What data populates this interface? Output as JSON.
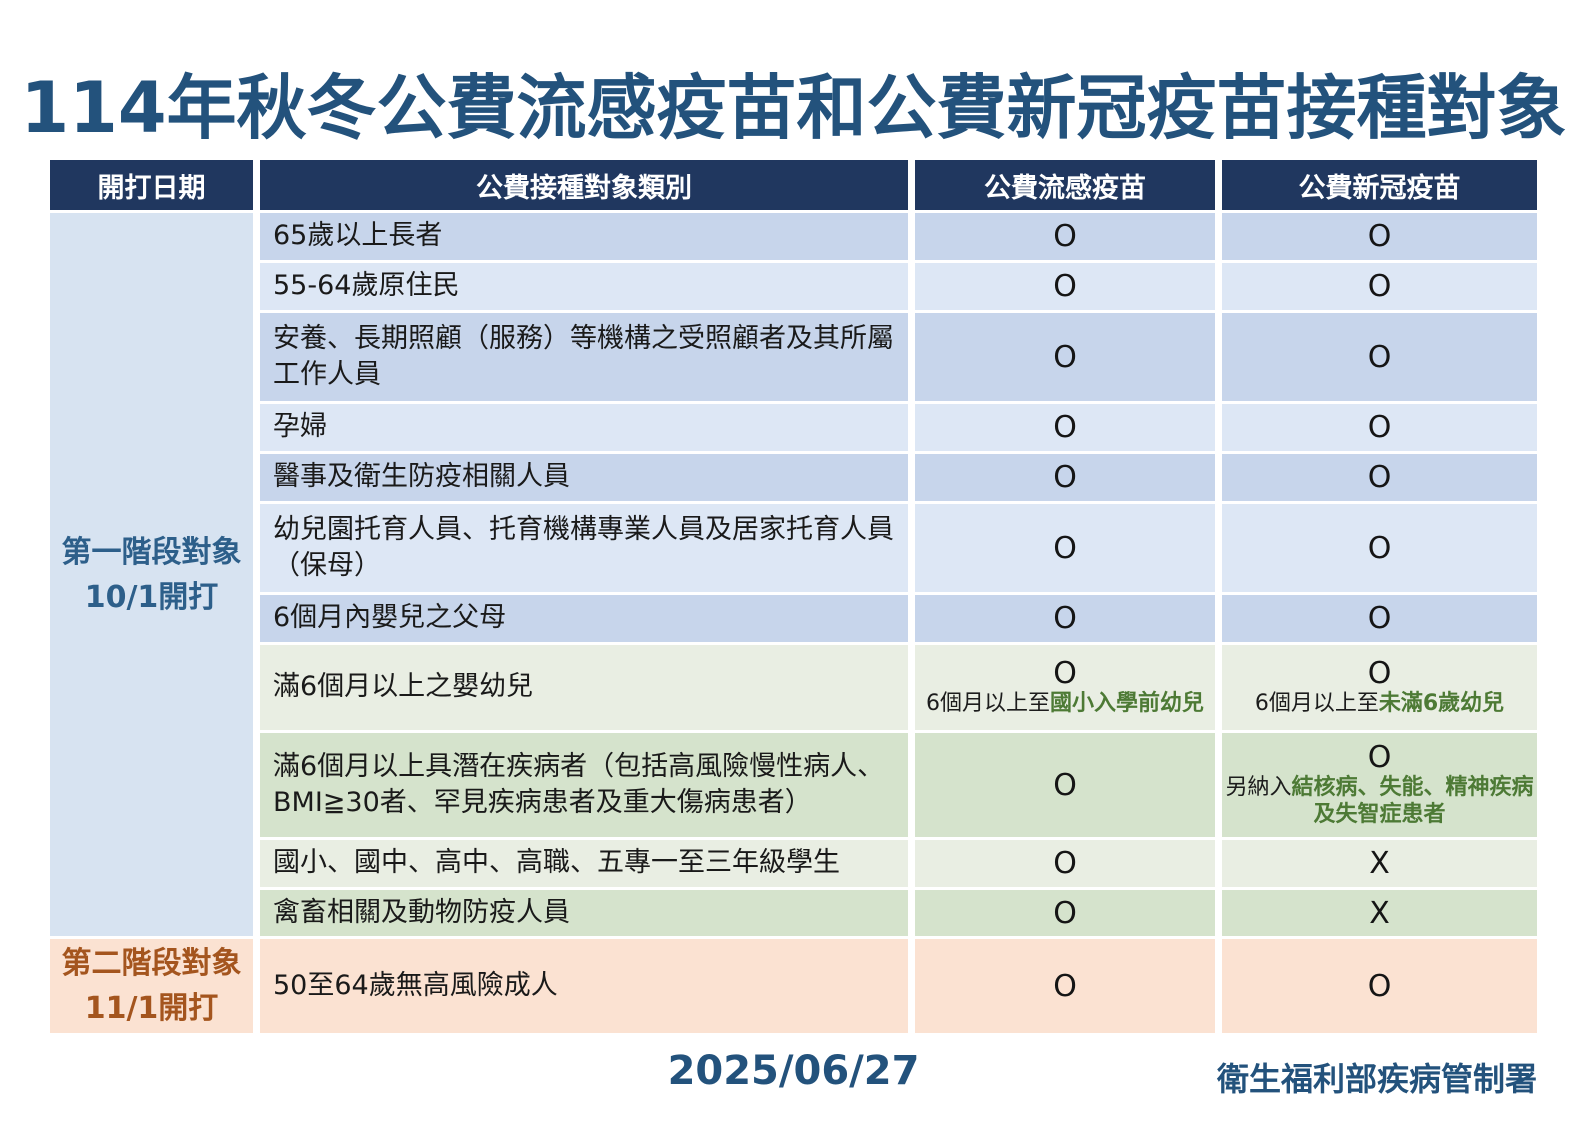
{
  "title": "114年秋冬公費流感疫苗和公費新冠疫苗接種對象",
  "table": {
    "headers": {
      "date": "開打日期",
      "category": "公費接種對象類別",
      "flu": "公費流感疫苗",
      "covid": "公費新冠疫苗"
    },
    "phases": [
      {
        "line1": "第一階段對象",
        "line2": "10/1開打"
      },
      {
        "line1": "第二階段對象",
        "line2": "11/1開打"
      }
    ],
    "rows": [
      {
        "category": "65歲以上長者",
        "flu": "O",
        "covid": "O"
      },
      {
        "category": "55-64歲原住民",
        "flu": "O",
        "covid": "O"
      },
      {
        "category": "安養、長期照顧（服務）等機構之受照顧者及其所屬工作人員",
        "flu": "O",
        "covid": "O"
      },
      {
        "category": "孕婦",
        "flu": "O",
        "covid": "O"
      },
      {
        "category": "醫事及衛生防疫相關人員",
        "flu": "O",
        "covid": "O"
      },
      {
        "category": "幼兒園托育人員、托育機構專業人員及居家托育人員（保母）",
        "flu": "O",
        "covid": "O"
      },
      {
        "category": "6個月內嬰兒之父母",
        "flu": "O",
        "covid": "O"
      },
      {
        "category": "滿6個月以上之嬰幼兒",
        "flu": "O",
        "flu_note_prefix": "6個月以上至",
        "flu_note_highlight": "國小入學前幼兒",
        "covid": "O",
        "covid_note_prefix": "6個月以上至",
        "covid_note_highlight": "未滿6歲幼兒"
      },
      {
        "category": "滿6個月以上具潛在疾病者（包括高風險慢性病人、BMI≧30者、罕見疾病患者及重大傷病患者）",
        "flu": "O",
        "covid": "O",
        "covid_note_prefix": "另納入",
        "covid_note_highlight": "結核病、失能、精神疾病及失智症患者"
      },
      {
        "category": "國小、國中、高中、高職、五專一至三年級學生",
        "flu": "O",
        "covid": "X"
      },
      {
        "category": "禽畜相關及動物防疫人員",
        "flu": "O",
        "covid": "X"
      },
      {
        "category": "50至64歲無高風險成人",
        "flu": "O",
        "covid": "O"
      }
    ]
  },
  "footer": {
    "date": "2025/06/27",
    "agency": "衛生福利部疾病管制署"
  },
  "colors": {
    "header_bg": "#20375f",
    "title_navy": "#23527c",
    "row_blue_dark": "#c7d5eb",
    "row_blue_light": "#dde7f5",
    "row_green_light": "#e9eee3",
    "row_green_dark": "#d5e3cc",
    "row_orange": "#fbe2d2",
    "phase1_bg": "#d7e3f1",
    "phase1_text": "#2d5f8a",
    "phase2_text": "#a4551e",
    "note_green": "#4d7a35"
  }
}
